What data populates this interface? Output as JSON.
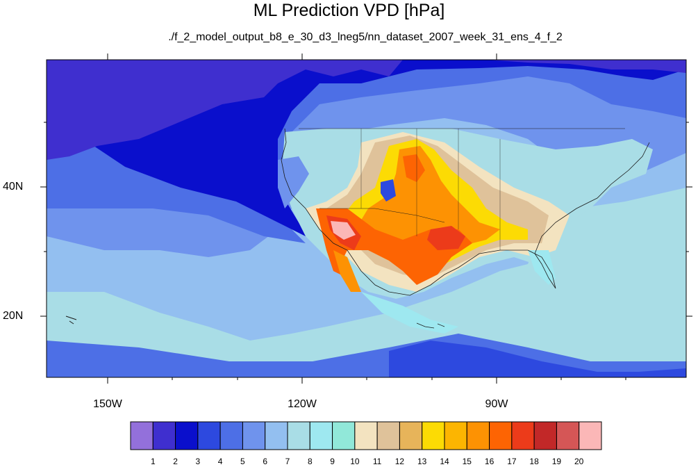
{
  "title": "ML Prediction VPD [hPa]",
  "subtitle": "./f_2_model_output_b8_e_30_d3_lneg5/nn_dataset_2007_week_31_ens_4_f_2",
  "map": {
    "lat_labels": [
      "40N",
      "20N"
    ],
    "lon_labels": [
      "150W",
      "120W",
      "90W"
    ],
    "extent": {
      "lon_min": -159.5,
      "lon_max": -61,
      "lat_min": 10,
      "lat_max": 59
    }
  },
  "colorbar": {
    "labels": [
      "1",
      "2",
      "3",
      "4",
      "5",
      "6",
      "7",
      "8",
      "9",
      "10",
      "11",
      "12",
      "13",
      "14",
      "15",
      "16",
      "17",
      "18",
      "19",
      "20"
    ],
    "colors": [
      "#9370db",
      "#3f2fcf",
      "#0a0fcc",
      "#2d49df",
      "#4d6fe6",
      "#6f93ed",
      "#93bff0",
      "#a9dde6",
      "#9ee8f0",
      "#91e8d9",
      "#f3e3c0",
      "#dfc29a",
      "#e7b45a",
      "#fcdb04",
      "#fcb501",
      "#fd9203",
      "#fd6403",
      "#ec3b1a",
      "#c22828",
      "#d55656",
      "#fbb7b7"
    ]
  },
  "colors": {
    "ocean_deep": "#0a0fcc",
    "ocean_mid": "#2d49df",
    "ocean_light": "#93bff0",
    "tropics": "#a9dde6"
  }
}
